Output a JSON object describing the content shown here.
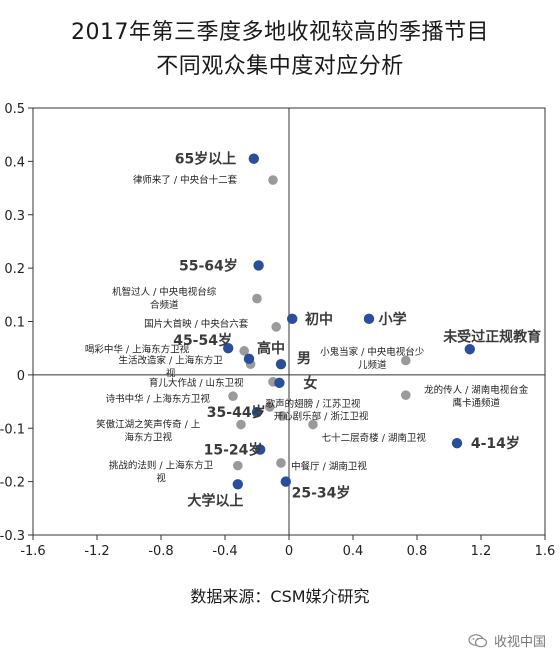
{
  "title_line1": "2017年第三季度多地收视较高的季播节目",
  "title_line2": "不同观众集中度对应分析",
  "source": "数据来源：CSM媒介研究",
  "watermark": "收视中国",
  "chart_data": {
    "type": "scatter",
    "xlim": [
      -1.6,
      1.6
    ],
    "ylim": [
      -0.3,
      0.5
    ],
    "xticks": [
      "-1.6",
      "-1.2",
      "-0.8",
      "-0.4",
      "0",
      "0.4",
      "0.8",
      "1.2",
      "1.6"
    ],
    "xtick_values": [
      -1.6,
      -1.2,
      -0.8,
      -0.4,
      0,
      0.4,
      0.8,
      1.2,
      1.6
    ],
    "yticks": [
      "0.5",
      "0.4",
      "0.3",
      "0.2",
      "0.1",
      "0",
      "-0.1",
      "-0.2",
      "-0.3"
    ],
    "ytick_values": [
      0.5,
      0.4,
      0.3,
      0.2,
      0.1,
      0,
      -0.1,
      -0.2,
      -0.3
    ],
    "colors": {
      "audience": "#2a4e9b",
      "program": "#9a9a9a",
      "axis": "#333333"
    },
    "audience_points": [
      {
        "label": "65岁以上",
        "x": -0.22,
        "y": 0.405,
        "lx": -0.33,
        "ly": 0.405,
        "anchor": "end"
      },
      {
        "label": "55-64岁",
        "x": -0.19,
        "y": 0.205,
        "lx": -0.32,
        "ly": 0.205,
        "anchor": "end"
      },
      {
        "label": "初中",
        "x": 0.02,
        "y": 0.105,
        "lx": 0.1,
        "ly": 0.105,
        "anchor": "start"
      },
      {
        "label": "小学",
        "x": 0.5,
        "y": 0.105,
        "lx": 0.56,
        "ly": 0.105,
        "anchor": "start"
      },
      {
        "label": "未受过正规教育",
        "x": 1.13,
        "y": 0.048,
        "lx": 1.27,
        "ly": 0.072,
        "anchor": "middle"
      },
      {
        "label": "45-54岁",
        "x": -0.38,
        "y": 0.05,
        "lx": -0.54,
        "ly": 0.065,
        "anchor": "middle"
      },
      {
        "label": "高中",
        "x": -0.25,
        "y": 0.03,
        "lx": -0.2,
        "ly": 0.05,
        "anchor": "start"
      },
      {
        "label": "男",
        "x": -0.05,
        "y": 0.02,
        "lx": 0.05,
        "ly": 0.032,
        "anchor": "start"
      },
      {
        "label": "女",
        "x": -0.06,
        "y": -0.015,
        "lx": 0.09,
        "ly": -0.015,
        "anchor": "start"
      },
      {
        "label": "35-44岁",
        "x": -0.2,
        "y": -0.07,
        "lx": -0.33,
        "ly": -0.07,
        "anchor": "middle"
      },
      {
        "label": "15-24岁",
        "x": -0.18,
        "y": -0.14,
        "lx": -0.35,
        "ly": -0.14,
        "anchor": "middle"
      },
      {
        "label": "25-34岁",
        "x": -0.02,
        "y": -0.2,
        "lx": 0.2,
        "ly": -0.22,
        "anchor": "middle"
      },
      {
        "label": "大学以上",
        "x": -0.32,
        "y": -0.205,
        "lx": -0.46,
        "ly": -0.235,
        "anchor": "middle"
      },
      {
        "label": "4-14岁",
        "x": 1.05,
        "y": -0.128,
        "lx": 1.29,
        "ly": -0.128,
        "anchor": "middle"
      }
    ],
    "program_points": [
      {
        "label": [
          "律师来了 / 中央台十二套"
        ],
        "x": -0.1,
        "y": 0.365,
        "lx": -0.65,
        "ly": 0.365,
        "anchor": "middle"
      },
      {
        "label": [
          "机智过人 / 中央电视台综",
          "合频道"
        ],
        "x": -0.2,
        "y": 0.143,
        "lx": -0.78,
        "ly": 0.155,
        "anchor": "middle"
      },
      {
        "label": [
          "国片大首映 / 中央台六套"
        ],
        "x": -0.08,
        "y": 0.09,
        "lx": -0.58,
        "ly": 0.095,
        "anchor": "middle"
      },
      {
        "label": [
          "喝彩中华 / 上海东方卫视"
        ],
        "x": -0.28,
        "y": 0.045,
        "lx": -0.95,
        "ly": 0.048,
        "anchor": "middle"
      },
      {
        "label": [
          "生活改造家 / 上海东方卫",
          "视"
        ],
        "x": -0.24,
        "y": 0.02,
        "lx": -0.74,
        "ly": 0.027,
        "anchor": "middle"
      },
      {
        "label": [
          "小鬼当家 / 中央电视台少",
          "儿频道"
        ],
        "x": 0.73,
        "y": 0.027,
        "lx": 0.52,
        "ly": 0.043,
        "anchor": "middle"
      },
      {
        "label": [
          "育儿大作战 / 山东卫视"
        ],
        "x": -0.1,
        "y": -0.013,
        "lx": -0.58,
        "ly": -0.015,
        "anchor": "middle"
      },
      {
        "label": [
          "诗书中华 / 上海东方卫视"
        ],
        "x": -0.35,
        "y": -0.04,
        "lx": -0.82,
        "ly": -0.045,
        "anchor": "middle"
      },
      {
        "label": [
          "歌声的翅膀 / 江苏卫视"
        ],
        "x": -0.12,
        "y": -0.06,
        "lx": 0.15,
        "ly": -0.055,
        "anchor": "middle"
      },
      {
        "label": [
          "龙的传人 / 湖南电视台金",
          "鹰卡通频道"
        ],
        "x": 0.73,
        "y": -0.038,
        "lx": 1.17,
        "ly": -0.028,
        "anchor": "middle"
      },
      {
        "label": [
          "开心剧乐部 / 浙江卫视"
        ],
        "x": -0.04,
        "y": -0.077,
        "lx": 0.2,
        "ly": -0.078,
        "anchor": "middle"
      },
      {
        "label": [
          "笑傲江湖之笑声传奇 / 上",
          "海东方卫视"
        ],
        "x": -0.3,
        "y": -0.093,
        "lx": -0.88,
        "ly": -0.093,
        "anchor": "middle"
      },
      {
        "label": [
          "七十二层奇楼 / 湖南卫视"
        ],
        "x": 0.15,
        "y": -0.093,
        "lx": 0.53,
        "ly": -0.118,
        "anchor": "middle"
      },
      {
        "label": [
          "挑战的法则 / 上海东方卫",
          "视"
        ],
        "x": -0.32,
        "y": -0.17,
        "lx": -0.8,
        "ly": -0.17,
        "anchor": "middle"
      },
      {
        "label": [
          "中餐厅 / 湖南卫视"
        ],
        "x": -0.05,
        "y": -0.165,
        "lx": 0.25,
        "ly": -0.172,
        "anchor": "middle"
      }
    ]
  }
}
